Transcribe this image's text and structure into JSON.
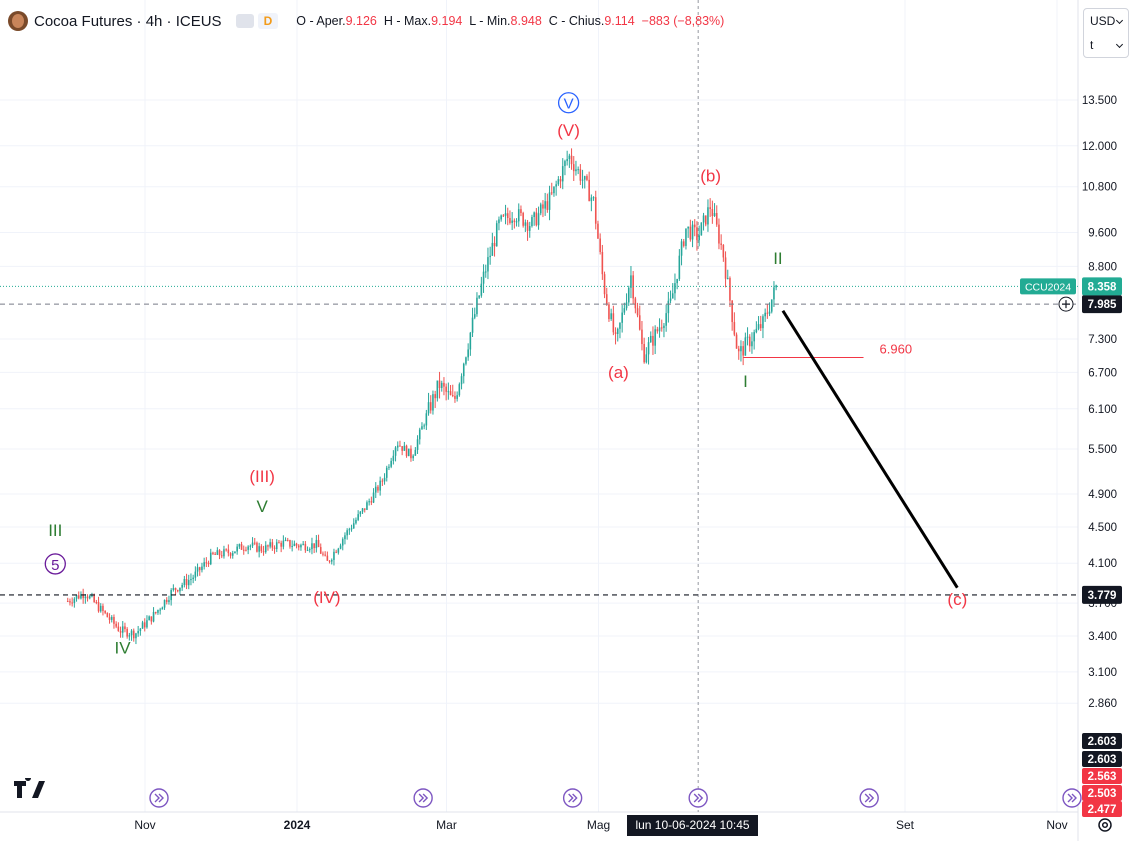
{
  "header": {
    "symbol": "Cocoa Futures · 4h · ICEUS",
    "d_badge": "D",
    "o_label": "O - Aper.",
    "o_val": "9.126",
    "h_label": "H - Max.",
    "h_val": "9.194",
    "l_label": "L - Min.",
    "l_val": "8.948",
    "c_label": "C - Chius.",
    "c_val": "9.114",
    "chg": "−883 (−8,83%)"
  },
  "currency": {
    "value": "USD",
    "unit": "t"
  },
  "colors": {
    "up": "#26a69a",
    "down": "#ef5350",
    "wave_red": "#f23645",
    "wave_green": "#2e7d32",
    "wave_purple": "#6a1b9a",
    "wave_blue": "#2962ff",
    "price_tag": "#22ab94"
  },
  "chart_data": {
    "type": "candlestick",
    "title": "Cocoa Futures · 4h · ICEUS",
    "y_scale": "log",
    "ylim": [
      2.4,
      15.5
    ],
    "y_ticks": [
      "13.500",
      "12.000",
      "10.800",
      "9.600",
      "8.800",
      "7.300",
      "6.700",
      "6.100",
      "5.500",
      "4.900",
      "4.500",
      "4.100",
      "3.700",
      "3.400",
      "3.100",
      "2.860"
    ],
    "x_ticks": [
      "Nov",
      "2024",
      "Mar",
      "Mag",
      "Set",
      "Nov"
    ],
    "crosshair_date": "lun 10-06-2024   10:45",
    "price_path": [
      [
        "2023-10-01",
        3.72
      ],
      [
        "2023-10-08",
        3.8
      ],
      [
        "2023-10-15",
        3.62
      ],
      [
        "2023-10-22",
        3.45
      ],
      [
        "2023-10-28",
        3.42
      ],
      [
        "2023-11-05",
        3.6
      ],
      [
        "2023-11-12",
        3.82
      ],
      [
        "2023-11-20",
        3.95
      ],
      [
        "2023-11-28",
        4.18
      ],
      [
        "2023-12-05",
        4.22
      ],
      [
        "2023-12-12",
        4.3
      ],
      [
        "2023-12-18",
        4.25
      ],
      [
        "2023-12-26",
        4.32
      ],
      [
        "2024-01-02",
        4.29
      ],
      [
        "2024-01-09",
        4.3
      ],
      [
        "2024-01-13",
        4.1
      ],
      [
        "2024-01-20",
        4.4
      ],
      [
        "2024-01-28",
        4.72
      ],
      [
        "2024-02-04",
        5.05
      ],
      [
        "2024-02-10",
        5.6
      ],
      [
        "2024-02-16",
        5.4
      ],
      [
        "2024-02-22",
        6.0
      ],
      [
        "2024-02-27",
        6.5
      ],
      [
        "2024-03-04",
        6.2
      ],
      [
        "2024-03-10",
        7.3
      ],
      [
        "2024-03-16",
        8.6
      ],
      [
        "2024-03-22",
        9.8
      ],
      [
        "2024-03-28",
        10.1
      ],
      [
        "2024-04-04",
        9.8
      ],
      [
        "2024-04-12",
        10.5
      ],
      [
        "2024-04-19",
        11.7
      ],
      [
        "2024-04-24",
        11.1
      ],
      [
        "2024-04-29",
        10.4
      ],
      [
        "2024-05-03",
        8.4
      ],
      [
        "2024-05-08",
        7.2
      ],
      [
        "2024-05-14",
        8.6
      ],
      [
        "2024-05-19",
        7.0
      ],
      [
        "2024-05-24",
        7.4
      ],
      [
        "2024-05-30",
        8.0
      ],
      [
        "2024-06-05",
        9.7
      ],
      [
        "2024-06-10",
        9.5
      ],
      [
        "2024-06-15",
        10.3
      ],
      [
        "2024-06-20",
        9.1
      ],
      [
        "2024-06-26",
        7.0
      ],
      [
        "2024-07-01",
        7.3
      ],
      [
        "2024-07-06",
        7.6
      ],
      [
        "2024-07-12",
        8.45
      ]
    ],
    "horizontal_levels": [
      {
        "price": 3.779,
        "label": "3.779",
        "style": "dashed"
      },
      {
        "price": 7.985,
        "label": "7.985",
        "style": "dashed"
      },
      {
        "price": 8.358,
        "label": "8.358",
        "style": "dotted",
        "tag": "CCU2024"
      },
      {
        "price": 6.96,
        "label": "6.960",
        "style": "segment"
      }
    ],
    "forecast_line": {
      "from": [
        "2024-07-14",
        7.85
      ],
      "to": [
        "2024-09-22",
        3.85
      ]
    },
    "wave_labels": [
      {
        "text": "III",
        "date": "2023-09-26",
        "price": 4.4,
        "color": "green"
      },
      {
        "text": "5",
        "date": "2023-09-26",
        "price": 4.03,
        "color": "purple",
        "circle": true
      },
      {
        "text": "IV",
        "date": "2023-10-23",
        "price": 3.25,
        "color": "green"
      },
      {
        "text": "(III)",
        "date": "2023-12-18",
        "price": 5.05,
        "color": "red"
      },
      {
        "text": "V",
        "date": "2023-12-18",
        "price": 4.68,
        "color": "green"
      },
      {
        "text": "(IV)",
        "date": "2024-01-13",
        "price": 3.7,
        "color": "red"
      },
      {
        "text": "V",
        "date": "2024-04-19",
        "price": 13.2,
        "color": "blue",
        "circle": true
      },
      {
        "text": "(V)",
        "date": "2024-04-19",
        "price": 12.3,
        "color": "red"
      },
      {
        "text": "(a)",
        "date": "2024-05-09",
        "price": 6.6,
        "color": "red"
      },
      {
        "text": "(b)",
        "date": "2024-06-15",
        "price": 10.95,
        "color": "red"
      },
      {
        "text": "I",
        "date": "2024-06-29",
        "price": 6.45,
        "color": "green"
      },
      {
        "text": "II",
        "date": "2024-07-12",
        "price": 8.85,
        "color": "green"
      },
      {
        "text": "(c)",
        "date": "2024-09-22",
        "price": 3.68,
        "color": "red"
      }
    ],
    "price_tags_bottom": [
      {
        "label": "2.603",
        "color": "dark"
      },
      {
        "label": "2.603",
        "color": "dark"
      },
      {
        "label": "2.563",
        "color": "red"
      },
      {
        "label": "2.503",
        "color": "red"
      },
      {
        "label": "2.477",
        "color": "red"
      }
    ]
  }
}
